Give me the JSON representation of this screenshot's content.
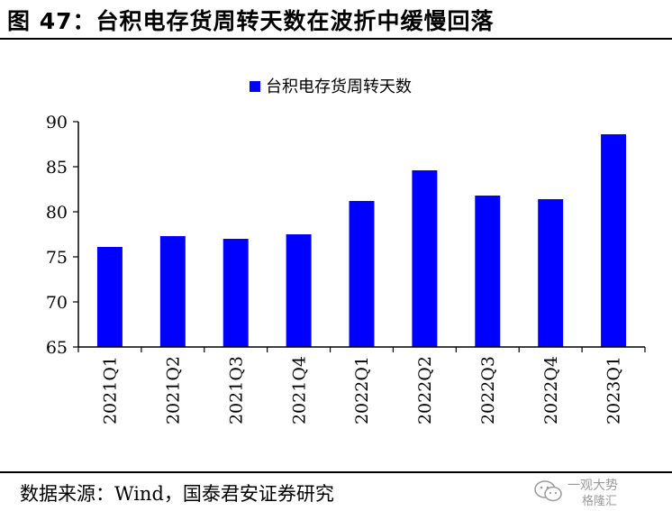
{
  "figure": {
    "title": "图 47：台积电存货周转天数在波折中缓慢回落",
    "source": "数据来源：Wind，国泰君安证券研究"
  },
  "watermark": {
    "line1": "一观大势",
    "line2": "格隆汇",
    "icon": "wechat-icon"
  },
  "chart_data": {
    "type": "bar",
    "title": "",
    "xlabel": "",
    "ylabel": "",
    "categories": [
      "2021Q1",
      "2021Q2",
      "2021Q3",
      "2021Q4",
      "2022Q1",
      "2022Q2",
      "2022Q3",
      "2022Q4",
      "2023Q1"
    ],
    "series": [
      {
        "name": "台积电存货周转天数",
        "values": [
          76.1,
          77.3,
          77.0,
          77.5,
          81.2,
          84.6,
          81.8,
          81.4,
          88.6
        ],
        "color": "#0000FF"
      }
    ],
    "ylim": [
      65,
      90
    ],
    "yticks": [
      "65",
      "70",
      "75",
      "80",
      "85",
      "90"
    ],
    "grid": false,
    "legend_position": "top-center"
  }
}
